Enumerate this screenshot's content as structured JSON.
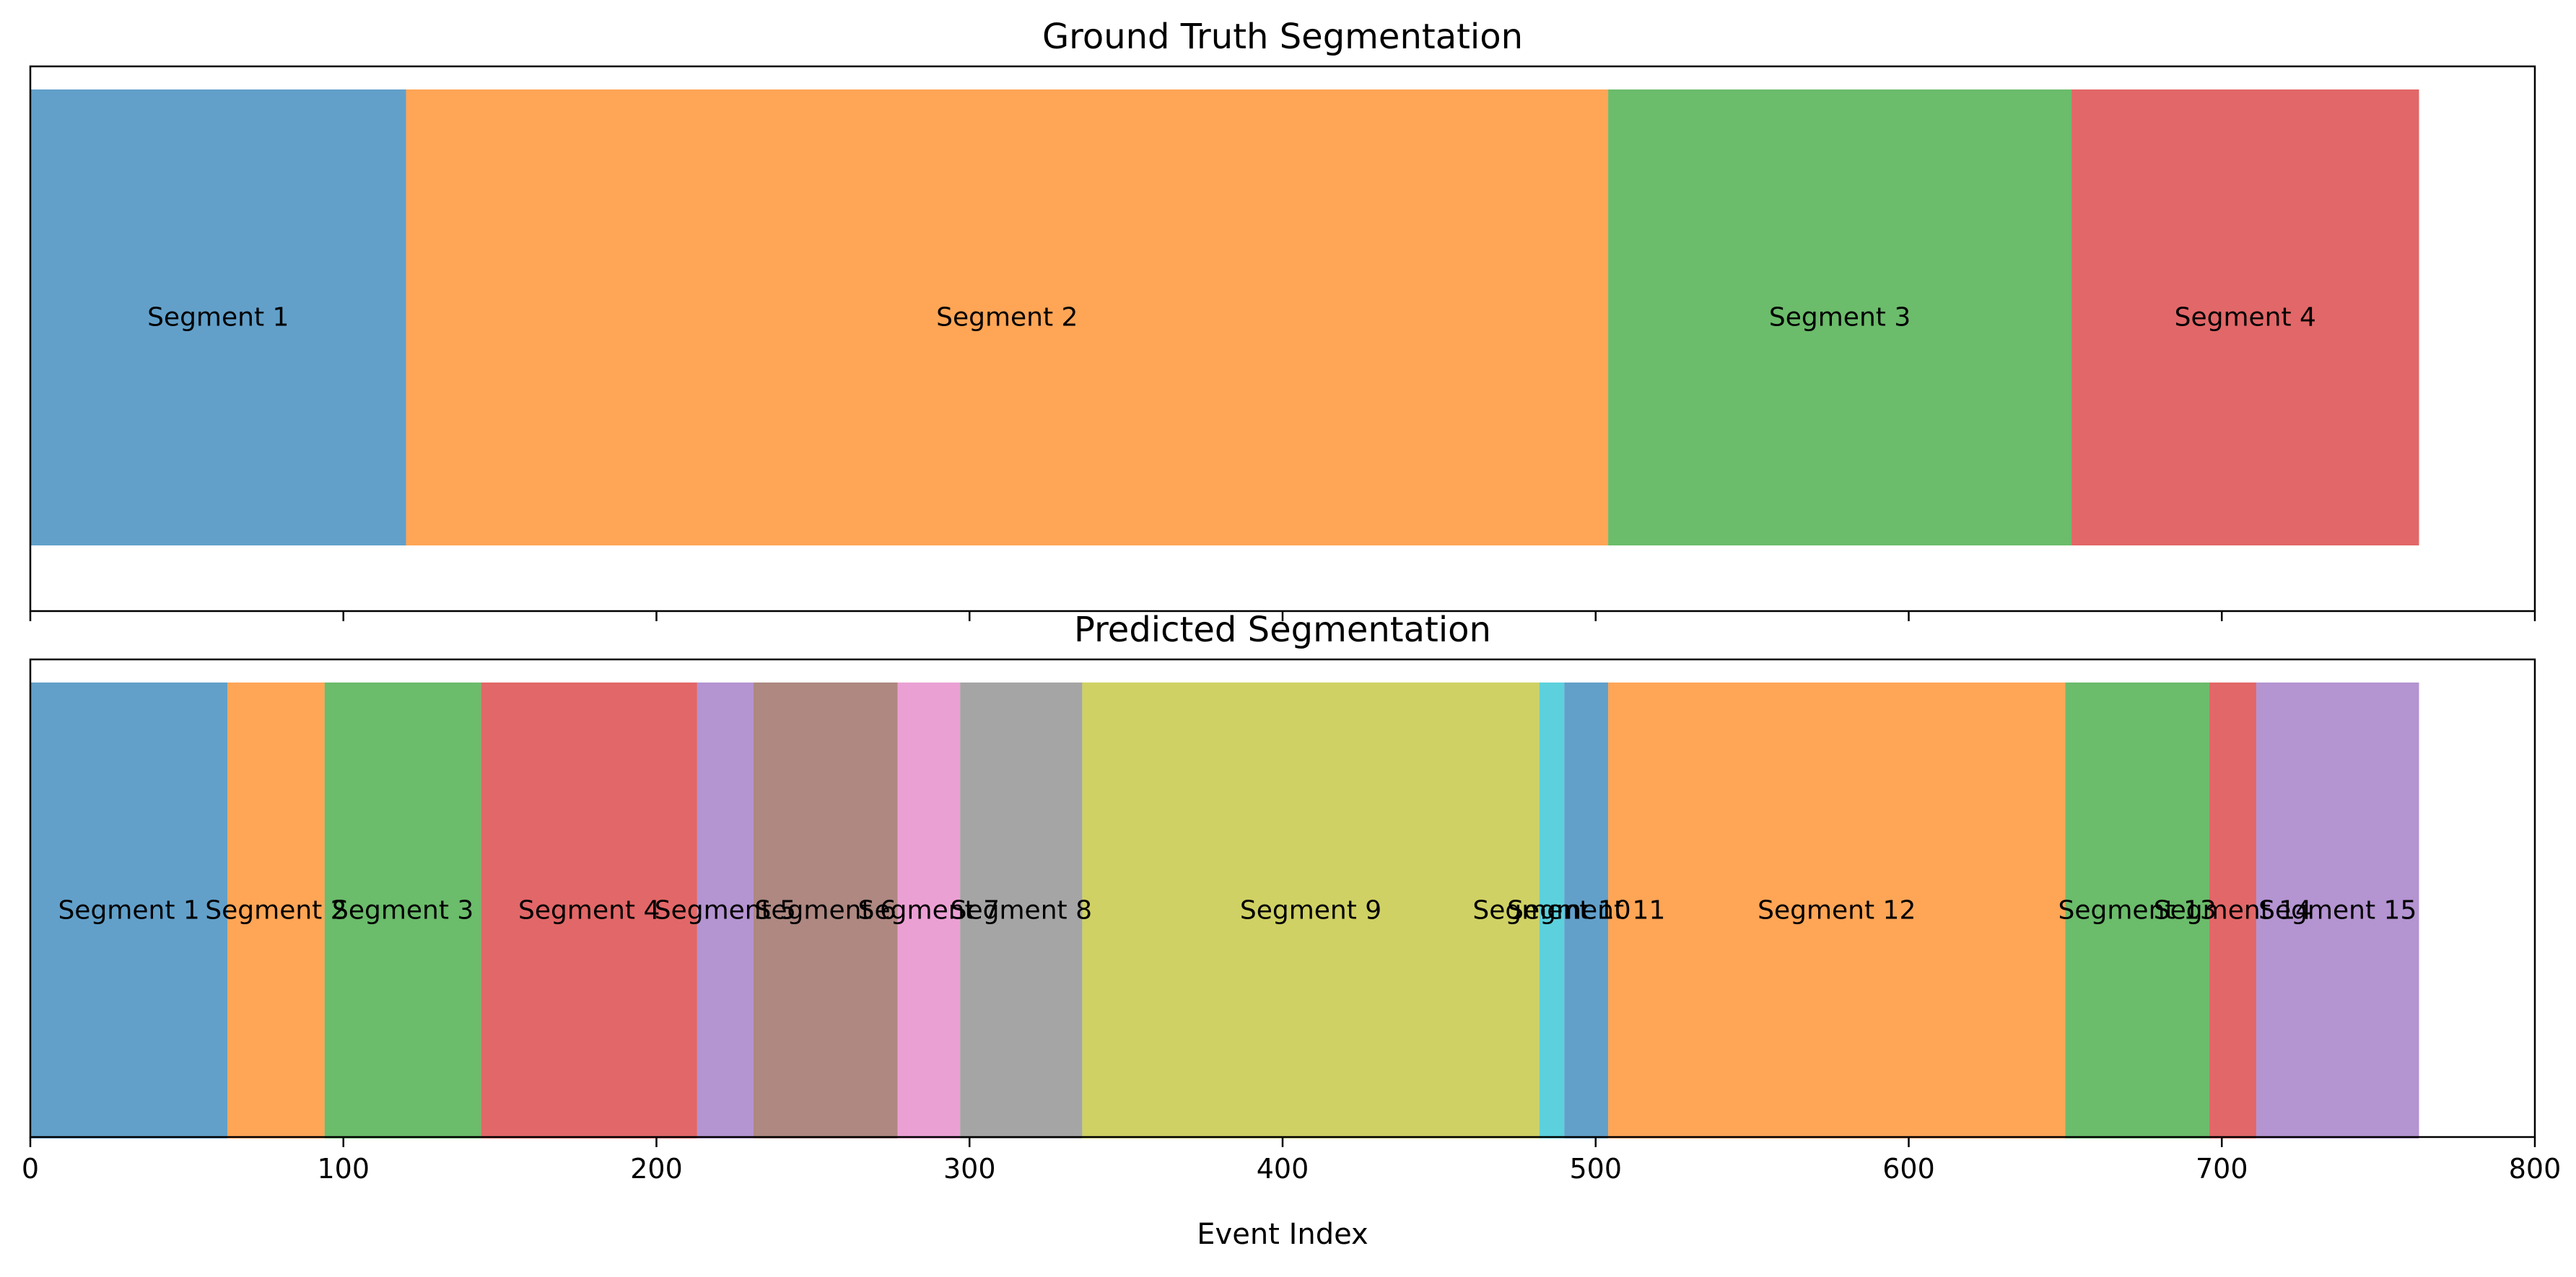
{
  "chart_data": [
    {
      "type": "bar",
      "orientation": "horizontal-stacked-segments",
      "title": "Ground Truth Segmentation",
      "xlim": [
        0,
        800
      ],
      "xlabel": "",
      "show_tick_labels": false,
      "segments": [
        {
          "label": "Segment 1",
          "start": 0,
          "end": 120,
          "color": "#1f77b4"
        },
        {
          "label": "Segment 2",
          "start": 120,
          "end": 504,
          "color": "#ff7f0e"
        },
        {
          "label": "Segment 3",
          "start": 504,
          "end": 652,
          "color": "#2ca02c"
        },
        {
          "label": "Segment 4",
          "start": 652,
          "end": 763,
          "color": "#d62728"
        }
      ]
    },
    {
      "type": "bar",
      "orientation": "horizontal-stacked-segments",
      "title": "Predicted Segmentation",
      "xlim": [
        0,
        800
      ],
      "xlabel": "Event Index",
      "show_tick_labels": true,
      "segments": [
        {
          "label": "Segment 1",
          "start": 0,
          "end": 63,
          "color": "#1f77b4"
        },
        {
          "label": "Segment 2",
          "start": 63,
          "end": 94,
          "color": "#ff7f0e"
        },
        {
          "label": "Segment 3",
          "start": 94,
          "end": 144,
          "color": "#2ca02c"
        },
        {
          "label": "Segment 4",
          "start": 144,
          "end": 213,
          "color": "#d62728"
        },
        {
          "label": "Segment 5",
          "start": 213,
          "end": 231,
          "color": "#9467bd"
        },
        {
          "label": "Segment 6",
          "start": 231,
          "end": 277,
          "color": "#8c564b"
        },
        {
          "label": "Segment 7",
          "start": 277,
          "end": 297,
          "color": "#e377c2"
        },
        {
          "label": "Segment 8",
          "start": 297,
          "end": 336,
          "color": "#7f7f7f"
        },
        {
          "label": "Segment 9",
          "start": 336,
          "end": 482,
          "color": "#bcbd22"
        },
        {
          "label": "Segment 10",
          "start": 482,
          "end": 490,
          "color": "#17becf"
        },
        {
          "label": "Segment 11",
          "start": 490,
          "end": 504,
          "color": "#1f77b4"
        },
        {
          "label": "Segment 12",
          "start": 504,
          "end": 650,
          "color": "#ff7f0e"
        },
        {
          "label": "Segment 13",
          "start": 650,
          "end": 696,
          "color": "#2ca02c"
        },
        {
          "label": "Segment 14",
          "start": 696,
          "end": 711,
          "color": "#d62728"
        },
        {
          "label": "Segment 15",
          "start": 711,
          "end": 763,
          "color": "#9467bd"
        }
      ]
    }
  ],
  "x_ticks": [
    0,
    100,
    200,
    300,
    400,
    500,
    600,
    700,
    800
  ],
  "style": {
    "segment_opacity": 0.7,
    "frame_color": "#000000"
  }
}
